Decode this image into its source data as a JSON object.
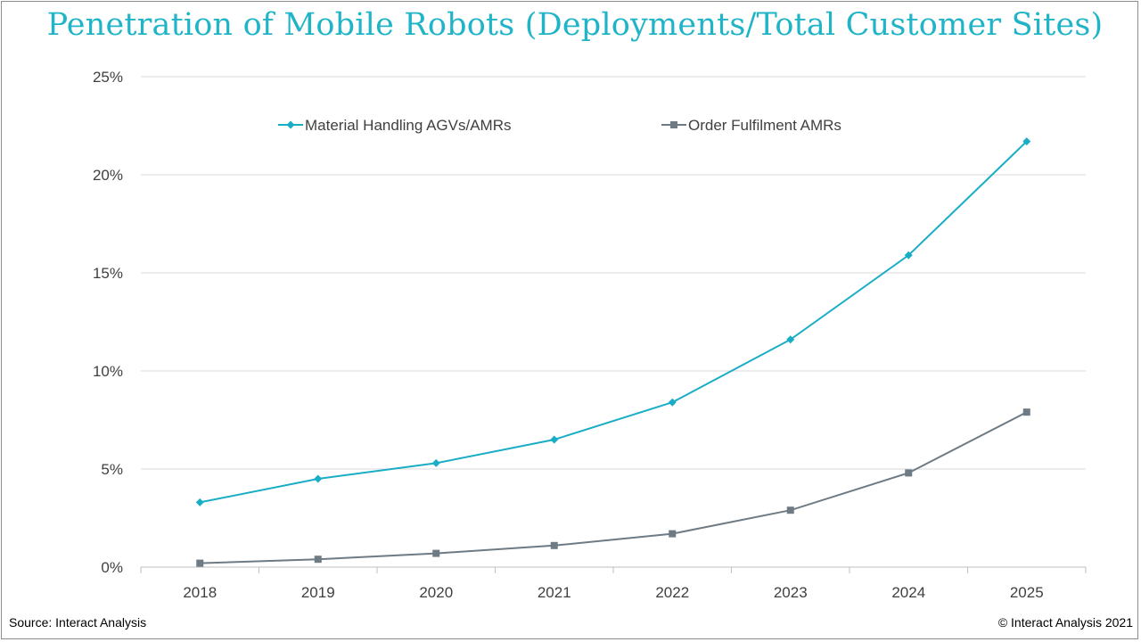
{
  "title": "Penetration of Mobile Robots (Deployments/Total Customer Sites)",
  "footer": {
    "source": "Source: Interact Analysis",
    "copyright": "© Interact Analysis 2021"
  },
  "colors": {
    "title": "#20b4c8",
    "series1": "#1aadc6",
    "series2": "#6e7b85",
    "grid": "#d9d9d9",
    "axis": "#bfbfbf",
    "text": "#404040"
  },
  "chart_data": {
    "type": "line",
    "title": "Penetration of Mobile Robots (Deployments/Total Customer Sites)",
    "xlabel": "",
    "ylabel": "",
    "categories": [
      "2018",
      "2019",
      "2020",
      "2021",
      "2022",
      "2023",
      "2024",
      "2025"
    ],
    "ylim": [
      0,
      25
    ],
    "yticks": [
      "0%",
      "5%",
      "10%",
      "15%",
      "20%",
      "25%"
    ],
    "legend_position": "top",
    "grid": true,
    "series": [
      {
        "name": "Material Handling AGVs/AMRs",
        "marker": "diamond",
        "values": [
          3.3,
          4.5,
          5.3,
          6.5,
          8.4,
          11.6,
          15.9,
          21.7
        ]
      },
      {
        "name": "Order Fulfilment AMRs",
        "marker": "square",
        "values": [
          0.2,
          0.4,
          0.7,
          1.1,
          1.7,
          2.9,
          4.8,
          7.9
        ]
      }
    ]
  }
}
